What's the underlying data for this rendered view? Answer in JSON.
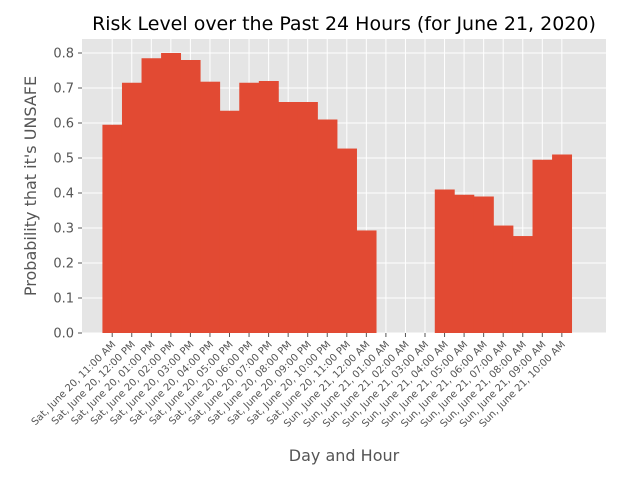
{
  "chart_data": {
    "type": "bar",
    "title": "Risk Level over the Past 24 Hours (for June 21, 2020)",
    "xlabel": "Day and Hour",
    "ylabel": "Probability that it's UNSAFE",
    "ylim": [
      0,
      0.84
    ],
    "yticks": [
      0.0,
      0.1,
      0.2,
      0.3,
      0.4,
      0.5,
      0.6,
      0.7,
      0.8
    ],
    "ytick_labels": [
      "0.0",
      "0.1",
      "0.2",
      "0.3",
      "0.4",
      "0.5",
      "0.6",
      "0.7",
      "0.8"
    ],
    "grid": true,
    "bar_color": "#E24A33",
    "background_color": "#E5E5E5",
    "categories": [
      "Sat, June 20, 11:00 AM",
      "Sat, June 20, 12:00 PM",
      "Sat, June 20, 01:00 PM",
      "Sat, June 20, 02:00 PM",
      "Sat, June 20, 03:00 PM",
      "Sat, June 20, 04:00 PM",
      "Sat, June 20, 05:00 PM",
      "Sat, June 20, 06:00 PM",
      "Sat, June 20, 07:00 PM",
      "Sat, June 20, 08:00 PM",
      "Sat, June 20, 09:00 PM",
      "Sat, June 20, 10:00 PM",
      "Sat, June 20, 11:00 PM",
      "Sun, June 21, 12:00 AM",
      "Sun, June 21, 01:00 AM",
      "Sun, June 21, 02:00 AM",
      "Sun, June 21, 03:00 AM",
      "Sun, June 21, 04:00 AM",
      "Sun, June 21, 05:00 AM",
      "Sun, June 21, 06:00 AM",
      "Sun, June 21, 07:00 AM",
      "Sun, June 21, 08:00 AM",
      "Sun, June 21, 09:00 AM",
      "Sun, June 21, 10:00 AM"
    ],
    "values": [
      0.595,
      0.715,
      0.785,
      0.8,
      0.78,
      0.718,
      0.635,
      0.715,
      0.72,
      0.66,
      0.66,
      0.61,
      0.527,
      0.293,
      null,
      null,
      null,
      0.41,
      0.395,
      0.39,
      0.307,
      0.277,
      0.495,
      0.51
    ]
  }
}
